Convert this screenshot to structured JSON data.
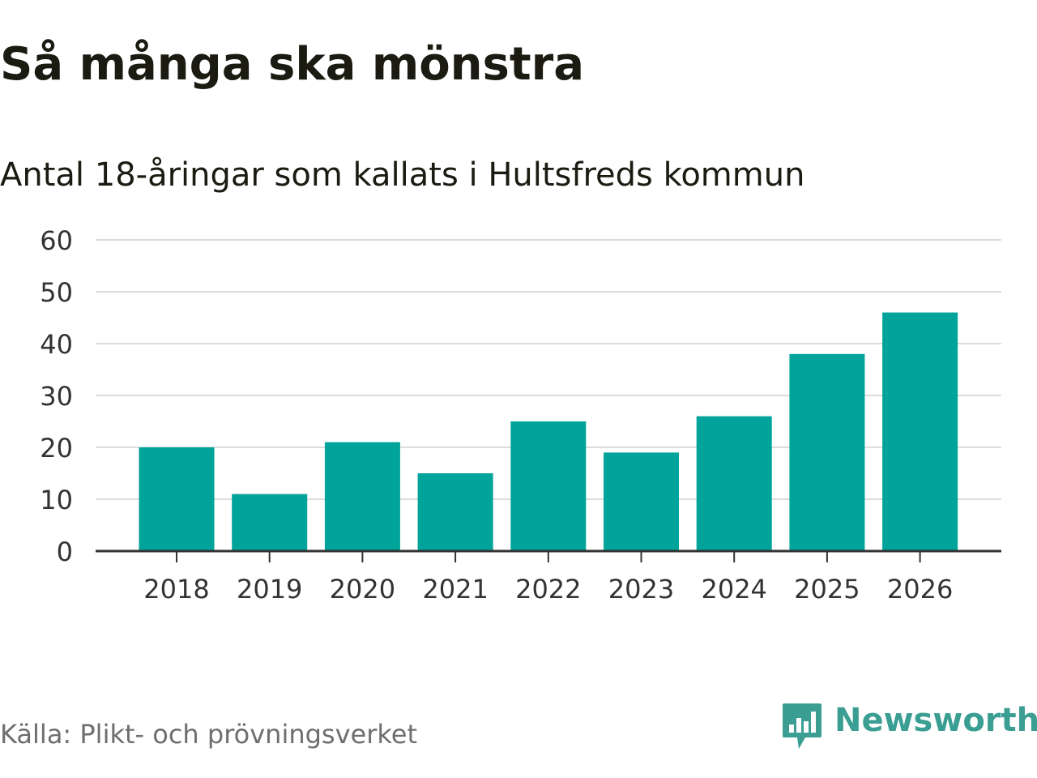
{
  "chart_data": {
    "type": "bar",
    "title": "Så många ska mönstra",
    "subtitle": "Antal 18-åringar som kallats i Hultsfreds kommun",
    "categories": [
      "2018",
      "2019",
      "2020",
      "2021",
      "2022",
      "2023",
      "2024",
      "2025",
      "2026"
    ],
    "values": [
      20,
      11,
      21,
      15,
      25,
      19,
      26,
      38,
      46
    ],
    "xlabel": "",
    "ylabel": "",
    "ylim": [
      0,
      60
    ],
    "yticks": [
      0,
      10,
      20,
      30,
      40,
      50,
      60
    ],
    "grid": true,
    "bar_color": "#00a49a"
  },
  "source": "Källa: Plikt- och prövningsverket",
  "brand": {
    "name": "Newsworthy",
    "icon": "newsworthy-logo-icon",
    "color": "#3a9e93"
  }
}
